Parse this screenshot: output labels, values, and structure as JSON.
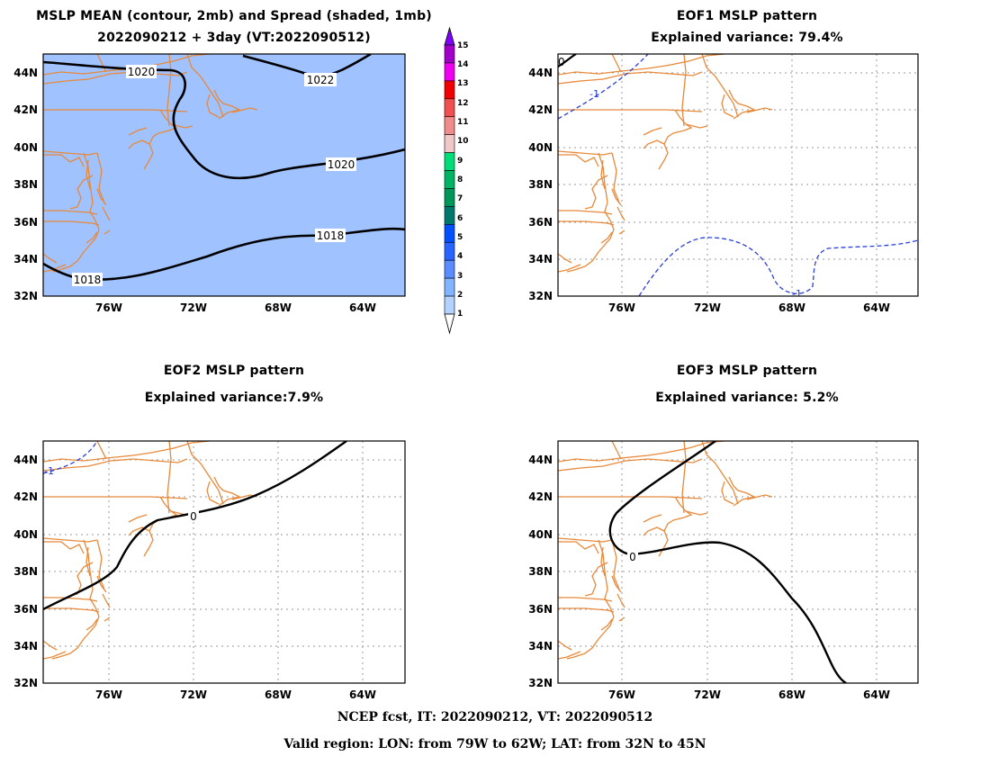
{
  "titles": {
    "main_line1": "MSLP MEAN (contour, 2mb) and Spread (shaded, 1mb)",
    "main_line2": "2022090212 + 3day (VT:2022090512)",
    "eof1_line1": "EOF1 MSLP pattern",
    "eof1_line2": "Explained variance: 79.4%",
    "eof2_line1": "EOF2 MSLP pattern",
    "eof2_line2": "Explained variance:7.9%",
    "eof3_line1": "EOF3 MSLP pattern",
    "eof3_line2": "Explained variance: 5.2%"
  },
  "axes": {
    "lat_labels": [
      "44N",
      "42N",
      "40N",
      "38N",
      "36N",
      "34N",
      "32N"
    ],
    "lon_labels": [
      "76W",
      "72W",
      "68W",
      "64W"
    ]
  },
  "colorbar": {
    "labels": [
      "15",
      "14",
      "13",
      "12",
      "11",
      "10",
      "9",
      "8",
      "7",
      "6",
      "5",
      "4",
      "3",
      "2",
      "1"
    ],
    "colors": [
      "#a000c8",
      "#f000f0",
      "#f00000",
      "#f05050",
      "#f08c8c",
      "#f0c8c8",
      "#00dc78",
      "#00b464",
      "#00965a",
      "#00786e",
      "#0050ff",
      "#2864ff",
      "#5a8cff",
      "#82b4ff",
      "#b4d2ff"
    ],
    "top_arrow_color": "#8000ff",
    "bottom_arrow_color": "#ffffff"
  },
  "contour_labels": {
    "mean": [
      "1020",
      "1022",
      "1020",
      "1018",
      "1018"
    ],
    "eof1": [
      "0",
      "-1",
      "-1"
    ],
    "eof2": [
      "-1",
      "0"
    ],
    "eof3": [
      "0"
    ]
  },
  "colors": {
    "map_fill_mean": "#a0c2ff",
    "coast": "#e8893a",
    "contour": "#000000",
    "negative_contour": "#2a3fd6",
    "grid": "#888888"
  },
  "footer": {
    "line1": "NCEP fcst, IT: 2022090212, VT: 2022090512",
    "line2": "Valid region: LON: from 79W to 62W; LAT: from 32N to 45N"
  }
}
